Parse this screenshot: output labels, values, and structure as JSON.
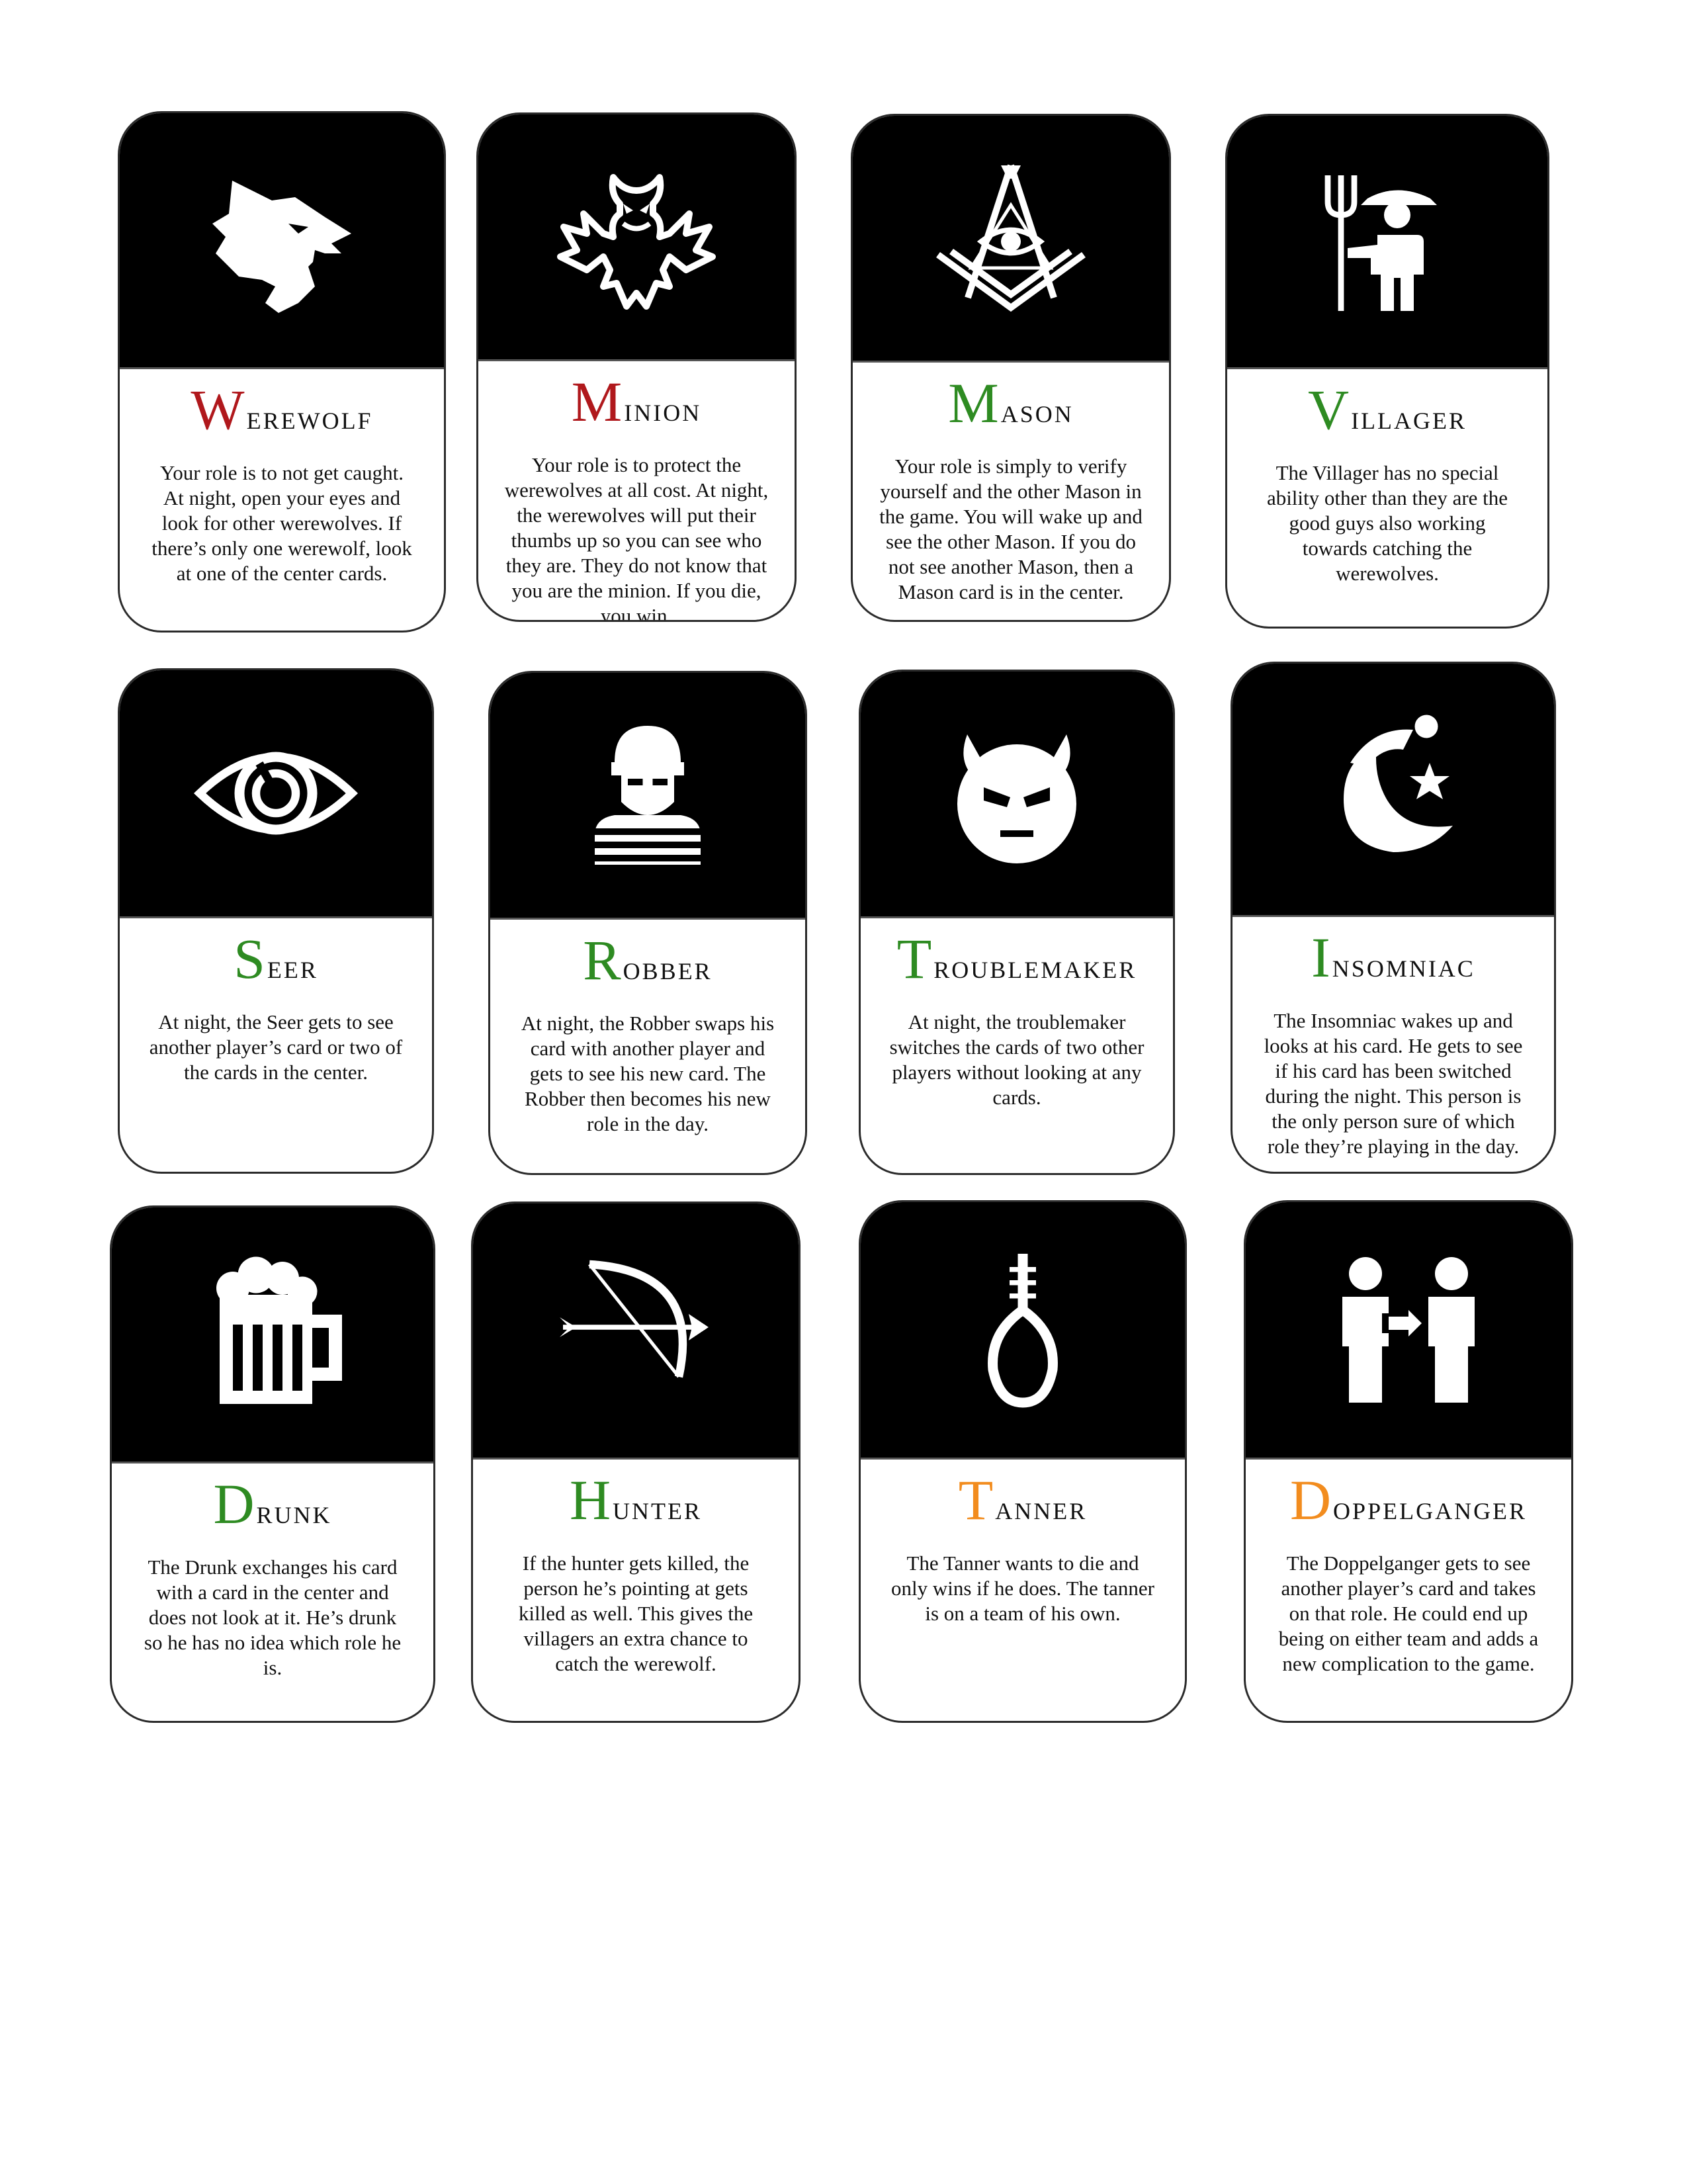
{
  "colors": {
    "evil_red": "#B0181C",
    "good_green": "#2E8B22",
    "neutral_orange": "#F28C1E",
    "card_art_background": "#000000",
    "icon_white": "#FFFFFF"
  },
  "cards": [
    {
      "id": "werewolf",
      "initial": "W",
      "rest": "erewolf",
      "initial_color": "#B0181C",
      "icon": "werewolf-head-icon",
      "description": "Your role is to not get caught. At night, open your eyes and look for other werewolves. If there’s only one werewolf, look at one of the center cards."
    },
    {
      "id": "minion",
      "initial": "M",
      "rest": "inion",
      "initial_color": "#B0181C",
      "icon": "demon-bat-icon",
      "description": "Your role is to protect the werewolves at all cost. At night, the werewolves will put their thumbs up so you can see who they are. They do not know that you are the minion. If you die, you win."
    },
    {
      "id": "mason",
      "initial": "M",
      "rest": "ason",
      "initial_color": "#2E8B22",
      "icon": "masonic-eye-icon",
      "description": "Your role is simply to verify yourself and the other Mason in the game. You will wake up and see the other Mason. If you do not see another Mason, then a Mason card is in the center."
    },
    {
      "id": "villager",
      "initial": "V",
      "rest": "illager",
      "initial_color": "#2E8B22",
      "icon": "farmer-pitchfork-icon",
      "description": "The Villager has no special ability other than they are the good guys also working towards catching the werewolves."
    },
    {
      "id": "seer",
      "initial": "S",
      "rest": "eer",
      "initial_color": "#2E8B22",
      "icon": "eye-icon",
      "description": "At night, the Seer gets to see another player’s card or two of the cards in the center."
    },
    {
      "id": "robber",
      "initial": "R",
      "rest": "obber",
      "initial_color": "#2E8B22",
      "icon": "masked-robber-icon",
      "description": "At night, the Robber swaps his card with another player and gets to see his new card. The Robber then becomes his new role in the day."
    },
    {
      "id": "troublemaker",
      "initial": "T",
      "rest": "roublemaker",
      "initial_color": "#2E8B22",
      "icon": "devil-face-icon",
      "description": "At night, the troublemaker switches the cards of two other players without looking at any cards."
    },
    {
      "id": "insomniac",
      "initial": "I",
      "rest": "nsomniac",
      "initial_color": "#2E8B22",
      "icon": "moon-nightcap-icon",
      "description": "The Insomniac wakes up and looks at his card. He gets to see if his card has been switched during the night. This person is the only person sure of which role they’re playing in the day."
    },
    {
      "id": "drunk",
      "initial": "D",
      "rest": "runk",
      "initial_color": "#2E8B22",
      "icon": "beer-mug-icon",
      "description": "The Drunk exchanges his card with a card in the center and does not look at it. He’s drunk so he has no idea which role he is."
    },
    {
      "id": "hunter",
      "initial": "H",
      "rest": "unter",
      "initial_color": "#2E8B22",
      "icon": "bow-arrow-icon",
      "description": "If the hunter gets killed, the person he’s pointing at gets killed as well. This gives the villagers an extra chance to catch the werewolf."
    },
    {
      "id": "tanner",
      "initial": "T",
      "rest": "anner",
      "initial_color": "#F28C1E",
      "icon": "noose-icon",
      "description": "The Tanner wants to die and only wins if he does. The tanner is on a team of his own."
    },
    {
      "id": "doppelganger",
      "initial": "D",
      "rest": "oppelganger",
      "initial_color": "#F28C1E",
      "icon": "swap-people-icon",
      "description": "The Doppelganger gets to see another player’s card and takes on that role. He could end up being on either team and adds a new complication to the game."
    }
  ]
}
